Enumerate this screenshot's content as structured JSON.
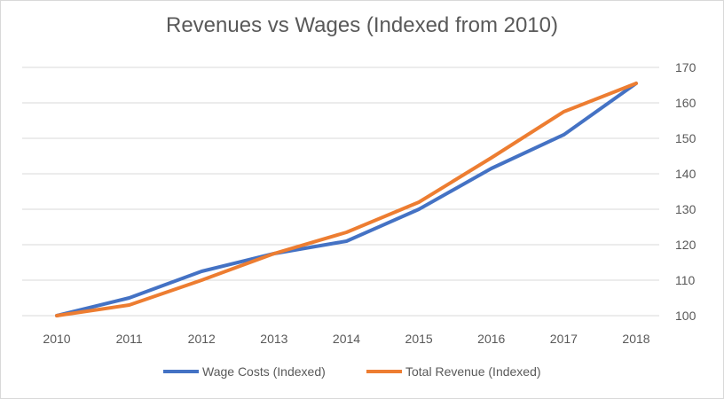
{
  "chart_data": {
    "type": "line",
    "title": "Revenues vs Wages (Indexed from 2010)",
    "xlabel": "",
    "ylabel": "",
    "categories": [
      "2010",
      "2011",
      "2012",
      "2013",
      "2014",
      "2015",
      "2016",
      "2017",
      "2018"
    ],
    "series": [
      {
        "name": "Wage Costs (Indexed)",
        "color": "#4472c4",
        "values": [
          100,
          105,
          112.5,
          117.5,
          121,
          130,
          141.5,
          151,
          165.5
        ]
      },
      {
        "name": "Total Revenue (Indexed)",
        "color": "#ed7d31",
        "values": [
          100,
          103,
          110,
          117.5,
          123.5,
          132,
          144.5,
          157.5,
          165.5
        ]
      }
    ],
    "ylim": [
      100,
      170
    ],
    "yticks": [
      "100",
      "110",
      "120",
      "130",
      "140",
      "150",
      "160",
      "170"
    ],
    "y_axis_side": "right",
    "grid": true,
    "legend": "bottom"
  }
}
